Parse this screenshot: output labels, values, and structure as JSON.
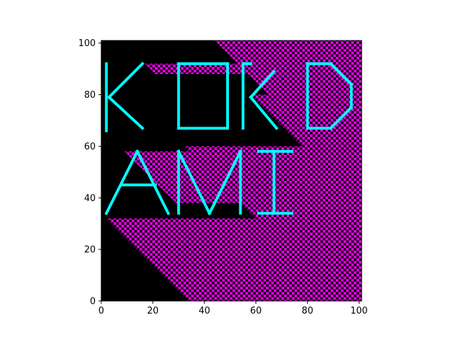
{
  "chart_data": {
    "type": "heatmap",
    "title": "",
    "xlabel": "",
    "ylabel": "",
    "xlim": [
      0,
      101
    ],
    "ylim": [
      0,
      101
    ],
    "x_ticks": [
      0,
      20,
      40,
      60,
      80,
      100
    ],
    "y_ticks": [
      0,
      20,
      40,
      60,
      80,
      100
    ],
    "colors": {
      "background": "#000000",
      "checker": "#ff00ff",
      "letters": "#00ffff"
    },
    "checker_bands": [
      {
        "x_start": 2,
        "x_end": 93,
        "y_start": 0,
        "y_end": 32
      },
      {
        "x_start": 9,
        "x_end": 40,
        "y_start": 38,
        "y_end": 58
      },
      {
        "x_start": 17,
        "x_end": 60,
        "y_start": 88,
        "y_end": 92
      },
      {
        "x_start": 32,
        "x_end": 101,
        "y_start": 18,
        "y_end": 60
      },
      {
        "x_start": 44,
        "x_end": 101,
        "y_start": 62,
        "y_end": 101
      },
      {
        "x_start": 58,
        "x_end": 101,
        "y_start": 40,
        "y_end": 80
      }
    ],
    "letters": [
      {
        "char": "K",
        "strokes": [
          [
            [
              2,
              66
            ],
            [
              2,
              92
            ]
          ],
          [
            [
              3,
              79
            ],
            [
              16,
              92
            ]
          ],
          [
            [
              3,
              79
            ],
            [
              16,
              67
            ]
          ]
        ]
      },
      {
        "char": "O",
        "strokes": [
          [
            [
              30,
              67
            ],
            [
              30,
              92
            ]
          ],
          [
            [
              30,
              92
            ],
            [
              49,
              92
            ]
          ],
          [
            [
              49,
              92
            ],
            [
              49,
              67
            ]
          ],
          [
            [
              49,
              67
            ],
            [
              30,
              67
            ]
          ]
        ]
      },
      {
        "char": "R",
        "strokes": [
          [
            [
              55,
              67
            ],
            [
              55,
              92
            ]
          ],
          [
            [
              55,
              92
            ],
            [
              58,
              92
            ]
          ],
          [
            [
              58,
              79
            ],
            [
              67,
              89
            ]
          ],
          [
            [
              58,
              79
            ],
            [
              68,
              67
            ]
          ]
        ]
      },
      {
        "char": "D",
        "strokes": [
          [
            [
              80,
              67
            ],
            [
              80,
              92
            ]
          ],
          [
            [
              80,
              92
            ],
            [
              89,
              92
            ]
          ],
          [
            [
              89,
              92
            ],
            [
              97,
              84
            ]
          ],
          [
            [
              97,
              84
            ],
            [
              97,
              75
            ]
          ],
          [
            [
              97,
              75
            ],
            [
              89,
              67
            ]
          ],
          [
            [
              89,
              67
            ],
            [
              80,
              67
            ]
          ]
        ]
      },
      {
        "char": "A",
        "strokes": [
          [
            [
              2,
              34
            ],
            [
              14,
              58
            ]
          ],
          [
            [
              14,
              58
            ],
            [
              26,
              34
            ]
          ],
          [
            [
              8,
              45
            ],
            [
              21,
              45
            ]
          ]
        ]
      },
      {
        "char": "M",
        "strokes": [
          [
            [
              30,
              34
            ],
            [
              30,
              58
            ]
          ],
          [
            [
              30,
              58
            ],
            [
              42,
              34
            ]
          ],
          [
            [
              42,
              34
            ],
            [
              54,
              58
            ]
          ],
          [
            [
              54,
              58
            ],
            [
              54,
              34
            ]
          ]
        ]
      },
      {
        "char": "I",
        "strokes": [
          [
            [
              61,
              58
            ],
            [
              74,
              58
            ]
          ],
          [
            [
              67,
              58
            ],
            [
              67,
              34
            ]
          ],
          [
            [
              61,
              34
            ],
            [
              74,
              34
            ]
          ]
        ]
      }
    ]
  }
}
